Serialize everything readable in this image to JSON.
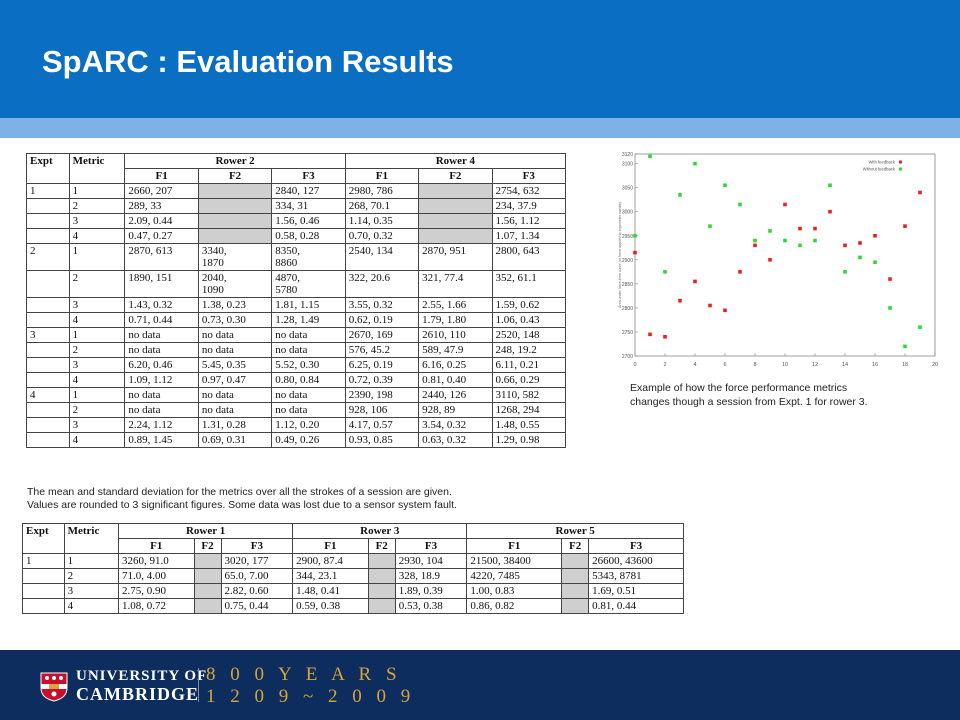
{
  "header": {
    "title": "SpARC : Evaluation Results"
  },
  "table1": {
    "h_expt": "Expt",
    "h_metric": "Metric",
    "groups": [
      "Rower 2",
      "Rower 4"
    ],
    "subs": [
      "F1",
      "F2",
      "F3",
      "F1",
      "F2",
      "F3"
    ],
    "rows": [
      {
        "expt": "1",
        "metric": "1",
        "c": [
          "2660, 207",
          "",
          "2840, 127",
          "2980, 786",
          "",
          "2754, 632"
        ],
        "gray": [
          1,
          4
        ]
      },
      {
        "expt": "",
        "metric": "2",
        "c": [
          "289, 33",
          "",
          "334, 31",
          "268, 70.1",
          "",
          "234, 37.9"
        ],
        "gray": [
          1,
          4
        ]
      },
      {
        "expt": "",
        "metric": "3",
        "c": [
          "2.09, 0.44",
          "",
          "1.56, 0.46",
          "1.14, 0.35",
          "",
          "1.56, 1.12"
        ],
        "gray": [
          1,
          4
        ]
      },
      {
        "expt": "",
        "metric": "4",
        "c": [
          "0.47, 0.27",
          "",
          "0.58, 0.28",
          "0.70, 0.32",
          "",
          "1.07, 1.34"
        ],
        "gray": [
          1,
          4
        ]
      },
      {
        "expt": "2",
        "metric": "1",
        "c": [
          "2870, 613",
          "3340,\n1870",
          "8350,\n8860",
          "2540, 134",
          "2870, 951",
          "2800, 643"
        ],
        "gray": []
      },
      {
        "expt": "",
        "metric": "2",
        "c": [
          "1890, 151",
          "2040,\n1090",
          "4870,\n5780",
          "322, 20.6",
          "321, 77.4",
          "352, 61.1"
        ],
        "gray": []
      },
      {
        "expt": "",
        "metric": "3",
        "c": [
          "1.43, 0.32",
          "1.38, 0.23",
          "1.81, 1.15",
          "3.55, 0.32",
          "2.55, 1.66",
          "1.59, 0.62"
        ],
        "gray": []
      },
      {
        "expt": "",
        "metric": "4",
        "c": [
          "0.71, 0.44",
          "0.73, 0.30",
          "1.28, 1.49",
          "0.62, 0.19",
          "1.79, 1.80",
          "1.06, 0.43"
        ],
        "gray": []
      },
      {
        "expt": "3",
        "metric": "1",
        "c": [
          "no data",
          "no data",
          "no data",
          "2670, 169",
          "2610, 110",
          "2520, 148"
        ],
        "gray": []
      },
      {
        "expt": "",
        "metric": "2",
        "c": [
          "no data",
          "no data",
          "no data",
          "576, 45.2",
          "589, 47.9",
          "248, 19.2"
        ],
        "gray": []
      },
      {
        "expt": "",
        "metric": "3",
        "c": [
          "6.20, 0.46",
          "5.45, 0.35",
          "5.52, 0.30",
          "6.25, 0.19",
          "6.16, 0.25",
          "6.11, 0.21"
        ],
        "gray": []
      },
      {
        "expt": "",
        "metric": "4",
        "c": [
          "1.09, 1.12",
          "0.97, 0.47",
          "0.80, 0.84",
          "0.72, 0.39",
          "0.81, 0.40",
          "0.66, 0.29"
        ],
        "gray": []
      },
      {
        "expt": "4",
        "metric": "1",
        "c": [
          "no data",
          "no data",
          "no data",
          "2390, 198",
          "2440, 126",
          "3110, 582"
        ],
        "gray": []
      },
      {
        "expt": "",
        "metric": "2",
        "c": [
          "no data",
          "no data",
          "no data",
          "928, 106",
          "928, 89",
          "1268, 294"
        ],
        "gray": []
      },
      {
        "expt": "",
        "metric": "3",
        "c": [
          "2.24, 1.12",
          "1.31, 0.28",
          "1.12, 0.20",
          "4.17, 0.57",
          "3.54, 0.32",
          "1.48, 0.55"
        ],
        "gray": []
      },
      {
        "expt": "",
        "metric": "4",
        "c": [
          "0.89, 1.45",
          "0.69, 0.31",
          "0.49, 0.26",
          "0.93, 0.85",
          "0.63, 0.32",
          "1.29, 0.98"
        ],
        "gray": []
      }
    ]
  },
  "caption1": {
    "line1": "The mean and standard deviation for the metrics over all the strokes of a session are given.",
    "line2": "Values are rounded to 3 significant figures. Some data was lost due to a sensor system fault."
  },
  "table2": {
    "h_expt": "Expt",
    "h_metric": "Metric",
    "groups": [
      "Rower 1",
      "Rower 3",
      "Rower 5"
    ],
    "subs": [
      "F1",
      "F2",
      "F3",
      "F1",
      "F2",
      "F3",
      "F1",
      "F2",
      "F3"
    ],
    "rows": [
      {
        "expt": "1",
        "metric": "1",
        "c": [
          "3260, 91.0",
          "",
          "3020, 177",
          "2900, 87.4",
          "",
          "2930, 104",
          "21500, 38400",
          "",
          "26600, 43600"
        ],
        "gray": [
          1,
          4,
          7
        ]
      },
      {
        "expt": "",
        "metric": "2",
        "c": [
          "71.0, 4.00",
          "",
          "65.0, 7.00",
          "344, 23.1",
          "",
          "328, 18.9",
          "4220, 7485",
          "",
          "5343, 8781"
        ],
        "gray": [
          1,
          4,
          7
        ]
      },
      {
        "expt": "",
        "metric": "3",
        "c": [
          "2.75, 0.90",
          "",
          "2.82, 0.60",
          "1.48, 0.41",
          "",
          "1.89, 0.39",
          "1.00, 0.83",
          "",
          "1.69, 0.51"
        ],
        "gray": [
          1,
          4,
          7
        ]
      },
      {
        "expt": "",
        "metric": "4",
        "c": [
          "1.08, 0.72",
          "",
          "0.75, 0.44",
          "0.59, 0.38",
          "",
          "0.53, 0.38",
          "0.86, 0.82",
          "",
          "0.81, 0.44"
        ],
        "gray": [
          1,
          4,
          7
        ]
      }
    ]
  },
  "caption2": {
    "line1": "Example of how the force performance metrics",
    "line2": "changes though a session from Expt. 1 for rower 3."
  },
  "chart_data": {
    "type": "scatter",
    "title": "",
    "xlabel": "",
    "ylabel": "Area under force-time curve (or force applied to ergometer handle)",
    "xlim": [
      0,
      20
    ],
    "ylim": [
      2700,
      3120
    ],
    "xticks": [
      "0",
      "2",
      "4",
      "6",
      "8",
      "10",
      "12",
      "14",
      "16",
      "18",
      "20"
    ],
    "yticks": [
      "2700",
      "2750",
      "2800",
      "2850",
      "2900",
      "2950",
      "3000",
      "3050",
      "3100",
      "3120"
    ],
    "legend": "top-right",
    "series": [
      {
        "name": "With feedback",
        "color": "#e8201f",
        "x": [
          0,
          1,
          2,
          3,
          4,
          5,
          6,
          7,
          8,
          9,
          10,
          11,
          12,
          13,
          14,
          15,
          16,
          17,
          18,
          19
        ],
        "y": [
          2915,
          2745,
          2740,
          2815,
          2855,
          2805,
          2795,
          2875,
          2930,
          2900,
          3015,
          2965,
          2965,
          3000,
          2930,
          2935,
          2950,
          2860,
          2970,
          3040
        ]
      },
      {
        "name": "Without feedback",
        "color": "#2bd83a",
        "x": [
          0,
          1,
          2,
          3,
          4,
          5,
          6,
          7,
          8,
          9,
          10,
          11,
          12,
          13,
          14,
          15,
          16,
          17,
          18,
          19
        ],
        "y": [
          2950,
          3115,
          2875,
          3035,
          3100,
          2970,
          3055,
          3015,
          2940,
          2960,
          2940,
          2930,
          2940,
          3055,
          2875,
          2905,
          2895,
          2800,
          2720,
          2760
        ]
      }
    ]
  },
  "footer": {
    "uni1": "UNIVERSITY OF",
    "uni2": "CAMBRIDGE",
    "years1": "8 0 0 Y E A R S",
    "years2": "1 2 0 9 ~ 2 0 0 9",
    "brand_color": "#0d2d5e",
    "accent_color": "#d9a43a"
  }
}
